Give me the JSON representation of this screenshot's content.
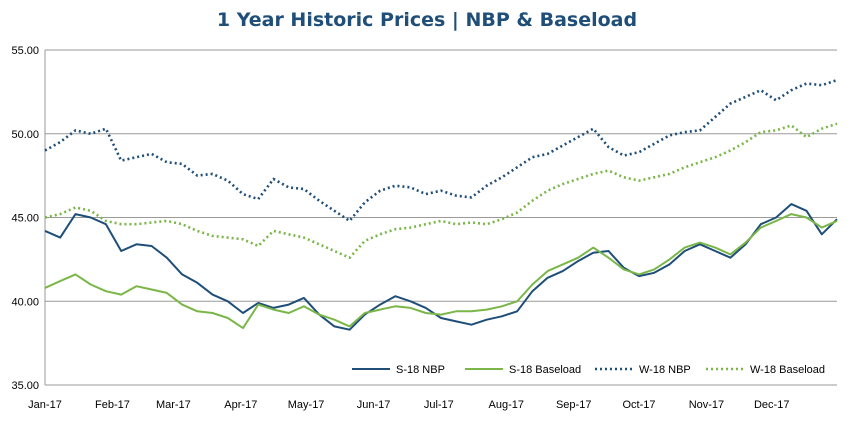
{
  "chart_data": {
    "type": "line",
    "title": "1 Year Historic Prices | NBP & Baseload",
    "xlabel": "",
    "ylabel": "",
    "ylim": [
      35,
      55
    ],
    "yticks": [
      "35.00",
      "40.00",
      "45.00",
      "50.00",
      "55.00"
    ],
    "xticks": [
      "Jan-17",
      "Feb-17",
      "Mar-17",
      "Apr-17",
      "May-17",
      "Jun-17",
      "Jul-17",
      "Aug-17",
      "Sep-17",
      "Oct-17",
      "Nov-17",
      "Dec-17"
    ],
    "grid": "horizontal",
    "legend_position": "bottom-right",
    "series": [
      {
        "name": "S-18 NBP",
        "color": "#1f4e79",
        "style": "solid",
        "x": [
          "2017-01-01",
          "2017-01-08",
          "2017-01-15",
          "2017-01-22",
          "2017-01-29",
          "2017-02-05",
          "2017-02-12",
          "2017-02-19",
          "2017-02-26",
          "2017-03-05",
          "2017-03-12",
          "2017-03-19",
          "2017-03-26",
          "2017-04-02",
          "2017-04-09",
          "2017-04-16",
          "2017-04-23",
          "2017-04-30",
          "2017-05-07",
          "2017-05-14",
          "2017-05-21",
          "2017-05-28",
          "2017-06-04",
          "2017-06-11",
          "2017-06-18",
          "2017-06-25",
          "2017-07-02",
          "2017-07-09",
          "2017-07-16",
          "2017-07-23",
          "2017-07-30",
          "2017-08-06",
          "2017-08-13",
          "2017-08-20",
          "2017-08-27",
          "2017-09-03",
          "2017-09-10",
          "2017-09-17",
          "2017-09-24",
          "2017-10-01",
          "2017-10-08",
          "2017-10-15",
          "2017-10-22",
          "2017-10-29",
          "2017-11-05",
          "2017-11-12",
          "2017-11-19",
          "2017-11-26",
          "2017-12-03",
          "2017-12-10",
          "2017-12-17",
          "2017-12-24",
          "2017-12-31"
        ],
        "y": [
          44.2,
          43.8,
          45.2,
          45.0,
          44.6,
          43.0,
          43.4,
          43.3,
          42.6,
          41.6,
          41.1,
          40.4,
          40.0,
          39.3,
          39.9,
          39.6,
          39.8,
          40.2,
          39.2,
          38.5,
          38.3,
          39.2,
          39.8,
          40.3,
          40.0,
          39.6,
          39.0,
          38.8,
          38.6,
          38.9,
          39.1,
          39.4,
          40.6,
          41.4,
          41.8,
          42.4,
          42.9,
          43.0,
          42.0,
          41.5,
          41.7,
          42.2,
          43.0,
          43.4,
          43.0,
          42.6,
          43.4,
          44.6,
          45.0,
          45.8,
          45.4,
          44.0,
          44.9
        ]
      },
      {
        "name": "S-18 Baseload",
        "color": "#7ab648",
        "style": "solid",
        "x": [
          "2017-01-01",
          "2017-01-08",
          "2017-01-15",
          "2017-01-22",
          "2017-01-29",
          "2017-02-05",
          "2017-02-12",
          "2017-02-19",
          "2017-02-26",
          "2017-03-05",
          "2017-03-12",
          "2017-03-19",
          "2017-03-26",
          "2017-04-02",
          "2017-04-09",
          "2017-04-16",
          "2017-04-23",
          "2017-04-30",
          "2017-05-07",
          "2017-05-14",
          "2017-05-21",
          "2017-05-28",
          "2017-06-04",
          "2017-06-11",
          "2017-06-18",
          "2017-06-25",
          "2017-07-02",
          "2017-07-09",
          "2017-07-16",
          "2017-07-23",
          "2017-07-30",
          "2017-08-06",
          "2017-08-13",
          "2017-08-20",
          "2017-08-27",
          "2017-09-03",
          "2017-09-10",
          "2017-09-17",
          "2017-09-24",
          "2017-10-01",
          "2017-10-08",
          "2017-10-15",
          "2017-10-22",
          "2017-10-29",
          "2017-11-05",
          "2017-11-12",
          "2017-11-19",
          "2017-11-26",
          "2017-12-03",
          "2017-12-10",
          "2017-12-17",
          "2017-12-24",
          "2017-12-31"
        ],
        "y": [
          40.8,
          41.2,
          41.6,
          41.0,
          40.6,
          40.4,
          40.9,
          40.7,
          40.5,
          39.8,
          39.4,
          39.3,
          39.0,
          38.4,
          39.8,
          39.5,
          39.3,
          39.7,
          39.2,
          38.9,
          38.5,
          39.3,
          39.5,
          39.7,
          39.6,
          39.3,
          39.2,
          39.4,
          39.4,
          39.5,
          39.7,
          40.0,
          41.0,
          41.8,
          42.2,
          42.6,
          43.2,
          42.6,
          41.9,
          41.6,
          41.9,
          42.5,
          43.2,
          43.5,
          43.2,
          42.8,
          43.5,
          44.4,
          44.8,
          45.2,
          45.0,
          44.4,
          44.8
        ]
      },
      {
        "name": "W-18 NBP",
        "color": "#1f4e79",
        "style": "dotted",
        "x": [
          "2017-01-01",
          "2017-01-08",
          "2017-01-15",
          "2017-01-22",
          "2017-01-29",
          "2017-02-05",
          "2017-02-12",
          "2017-02-19",
          "2017-02-26",
          "2017-03-05",
          "2017-03-12",
          "2017-03-19",
          "2017-03-26",
          "2017-04-02",
          "2017-04-09",
          "2017-04-16",
          "2017-04-23",
          "2017-04-30",
          "2017-05-07",
          "2017-05-14",
          "2017-05-21",
          "2017-05-28",
          "2017-06-04",
          "2017-06-11",
          "2017-06-18",
          "2017-06-25",
          "2017-07-02",
          "2017-07-09",
          "2017-07-16",
          "2017-07-23",
          "2017-07-30",
          "2017-08-06",
          "2017-08-13",
          "2017-08-20",
          "2017-08-27",
          "2017-09-03",
          "2017-09-10",
          "2017-09-17",
          "2017-09-24",
          "2017-10-01",
          "2017-10-08",
          "2017-10-15",
          "2017-10-22",
          "2017-10-29",
          "2017-11-05",
          "2017-11-12",
          "2017-11-19",
          "2017-11-26",
          "2017-12-03",
          "2017-12-10",
          "2017-12-17",
          "2017-12-24",
          "2017-12-31"
        ],
        "y": [
          49.0,
          49.5,
          50.2,
          50.0,
          50.3,
          48.4,
          48.6,
          48.8,
          48.3,
          48.2,
          47.5,
          47.6,
          47.2,
          46.4,
          46.1,
          47.3,
          46.8,
          46.7,
          46.0,
          45.4,
          44.8,
          45.9,
          46.6,
          46.9,
          46.8,
          46.4,
          46.6,
          46.3,
          46.2,
          46.9,
          47.4,
          48.0,
          48.6,
          48.8,
          49.3,
          49.8,
          50.3,
          49.2,
          48.7,
          48.9,
          49.4,
          49.9,
          50.1,
          50.2,
          51.0,
          51.8,
          52.2,
          52.6,
          52.0,
          52.6,
          53.0,
          52.9,
          53.2
        ]
      },
      {
        "name": "W-18 Baseload",
        "color": "#7ab648",
        "style": "dotted",
        "x": [
          "2017-01-01",
          "2017-01-08",
          "2017-01-15",
          "2017-01-22",
          "2017-01-29",
          "2017-02-05",
          "2017-02-12",
          "2017-02-19",
          "2017-02-26",
          "2017-03-05",
          "2017-03-12",
          "2017-03-19",
          "2017-03-26",
          "2017-04-02",
          "2017-04-09",
          "2017-04-16",
          "2017-04-23",
          "2017-04-30",
          "2017-05-07",
          "2017-05-14",
          "2017-05-21",
          "2017-05-28",
          "2017-06-04",
          "2017-06-11",
          "2017-06-18",
          "2017-06-25",
          "2017-07-02",
          "2017-07-09",
          "2017-07-16",
          "2017-07-23",
          "2017-07-30",
          "2017-08-06",
          "2017-08-13",
          "2017-08-20",
          "2017-08-27",
          "2017-09-03",
          "2017-09-10",
          "2017-09-17",
          "2017-09-24",
          "2017-10-01",
          "2017-10-08",
          "2017-10-15",
          "2017-10-22",
          "2017-10-29",
          "2017-11-05",
          "2017-11-12",
          "2017-11-19",
          "2017-11-26",
          "2017-12-03",
          "2017-12-10",
          "2017-12-17",
          "2017-12-24",
          "2017-12-31"
        ],
        "y": [
          45.0,
          45.2,
          45.6,
          45.4,
          44.8,
          44.6,
          44.6,
          44.7,
          44.8,
          44.6,
          44.2,
          43.9,
          43.8,
          43.7,
          43.3,
          44.2,
          44.0,
          43.8,
          43.4,
          43.0,
          42.6,
          43.6,
          44.0,
          44.3,
          44.4,
          44.6,
          44.8,
          44.6,
          44.7,
          44.6,
          44.9,
          45.3,
          46.0,
          46.6,
          47.0,
          47.3,
          47.6,
          47.8,
          47.4,
          47.2,
          47.4,
          47.6,
          48.0,
          48.3,
          48.6,
          49.0,
          49.5,
          50.1,
          50.2,
          50.5,
          49.8,
          50.3,
          50.6
        ]
      }
    ]
  }
}
